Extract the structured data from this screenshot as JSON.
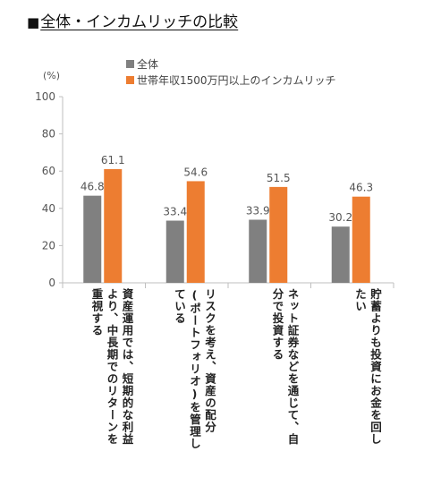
{
  "title": "全体・インカムリッチの比較",
  "title_marker": "■",
  "unit_label": "(%)",
  "chart_data": {
    "type": "bar",
    "categories": [
      [
        "資産運用では、短期的な利益",
        "より、中長期でのリターンを",
        "重視する"
      ],
      [
        "リスクを考え、資産の配分",
        "(ポートフォリオ)を管理し",
        "ている"
      ],
      [
        "ネット証券などを通じて、自",
        "分で投資する"
      ],
      [
        "貯蓄よりも投資にお金を回し",
        "たい"
      ]
    ],
    "series": [
      {
        "name": "全体",
        "color": "#808080",
        "values": [
          46.8,
          33.4,
          33.9,
          30.2
        ]
      },
      {
        "name": "世帯年収1500万円以上のインカムリッチ",
        "color": "#ED7D31",
        "values": [
          61.1,
          54.6,
          51.5,
          46.3
        ]
      }
    ],
    "yticks": [
      0,
      20,
      40,
      60,
      80,
      100
    ],
    "ylim": [
      0,
      100
    ],
    "grid": false,
    "legend_position": "top-left"
  }
}
